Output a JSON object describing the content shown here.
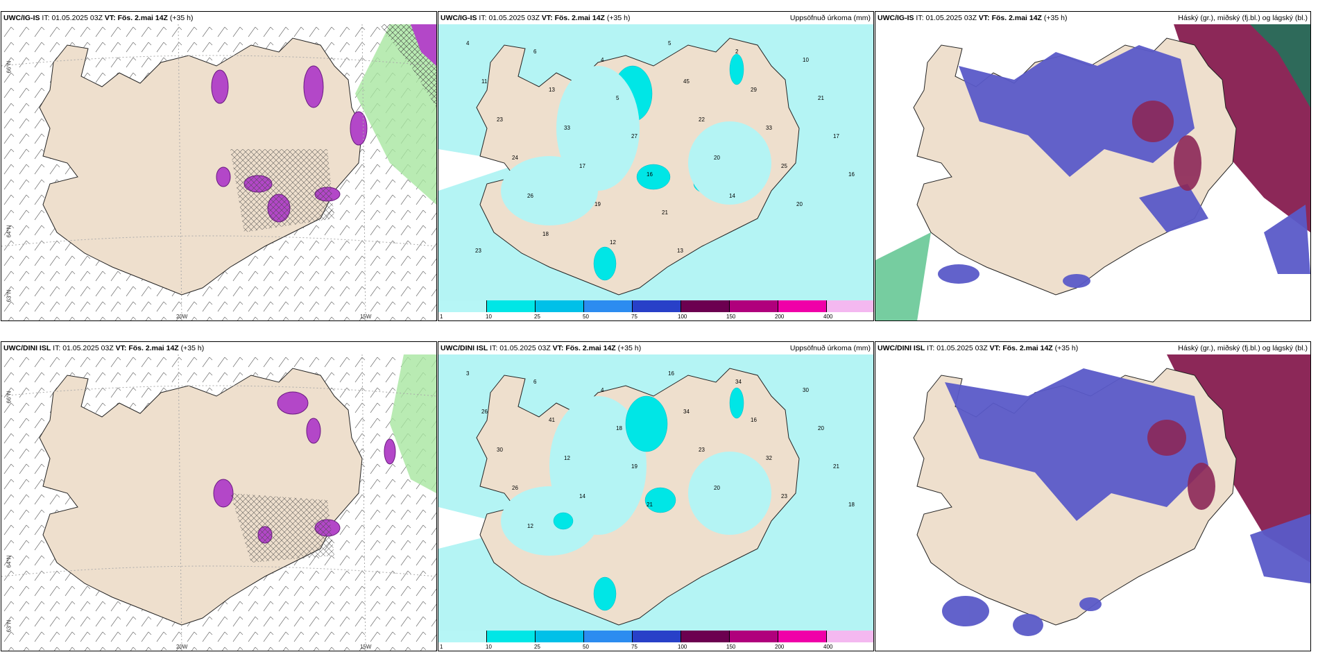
{
  "rows": [
    {
      "model": "UWC/IG-IS",
      "it_label": "IT:",
      "it": "01.05.2025 03Z",
      "vt_label": "VT:",
      "vt": "Fös. 2.mai 14Z",
      "lead": "(+35 h)"
    },
    {
      "model": "UWC/DINI ISL",
      "it_label": "IT:",
      "it": "01.05.2025 03Z",
      "vt_label": "VT:",
      "vt": "Fös. 2.mai 14Z",
      "lead": "(+35 h)"
    }
  ],
  "titles": {
    "precip": "Uppsöfnuð úrkoma (mm)",
    "cloud": "Háský (gr.), miðský (fj.bl.) og lágský (bl.)"
  },
  "axes": {
    "lat_66": "66°N",
    "lat_64": "64°N",
    "lat_63": "63°N",
    "lon_20": "20W",
    "lon_15": "15W"
  },
  "colorbar": {
    "ticks": [
      "1",
      "10",
      "25",
      "50",
      "75",
      "100",
      "150",
      "200",
      "400"
    ],
    "colors": [
      "#b6f6f6",
      "#00e6e6",
      "#00c0e8",
      "#2c8cf0",
      "#2840c8",
      "#6c0050",
      "#b0007c",
      "#f000a8",
      "#f4b8f0"
    ]
  },
  "colors": {
    "land": "#eedfcd",
    "sea_precip": "#b4f4f4",
    "purple_snow": "#b347c8",
    "green_precip": "#a8e6a0",
    "cloud_high": "#5a5ac8",
    "cloud_mid": "#8c2858",
    "cloud_low": "#2e6a5a"
  },
  "precip_labels_top": [
    "4",
    "6",
    "4",
    "5",
    "2",
    "10",
    "11",
    "13",
    "5",
    "45",
    "29",
    "21",
    "23",
    "33",
    "27",
    "22",
    "33",
    "17",
    "24",
    "17",
    "16",
    "20",
    "25",
    "16",
    "26",
    "19",
    "21",
    "14",
    "20",
    "23",
    "18",
    "12",
    "13"
  ],
  "precip_labels_bottom": [
    "3",
    "6",
    "4",
    "16",
    "34",
    "30",
    "26",
    "41",
    "18",
    "34",
    "16",
    "20",
    "30",
    "12",
    "19",
    "23",
    "32",
    "21",
    "26",
    "14",
    "21",
    "20",
    "23",
    "18",
    "12"
  ]
}
